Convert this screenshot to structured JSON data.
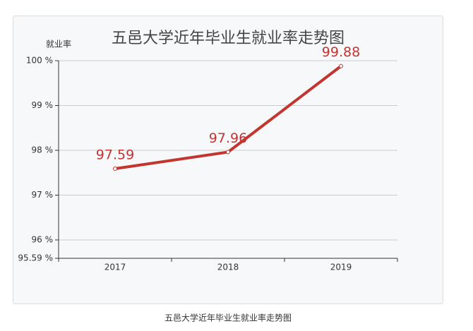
{
  "chart_data": {
    "type": "line",
    "title": "五邑大学近年毕业生就业率走势图",
    "y_label": "就业率",
    "categories": [
      "2017",
      "2018",
      "2019"
    ],
    "series": [
      {
        "name": "就业率",
        "color": "#c23531",
        "values": [
          97.59,
          97.96,
          99.88
        ]
      }
    ],
    "ylim": [
      95.59,
      100
    ],
    "yticks": [
      {
        "value": 95.59,
        "label": "95.59 %"
      },
      {
        "value": 96,
        "label": "96 %"
      },
      {
        "value": 97,
        "label": "97 %"
      },
      {
        "value": 98,
        "label": "98 %"
      },
      {
        "value": 99,
        "label": "99 %"
      },
      {
        "value": 100,
        "label": "100 %"
      }
    ],
    "grid": true
  },
  "caption": "五邑大学近年毕业生就业率走势图"
}
